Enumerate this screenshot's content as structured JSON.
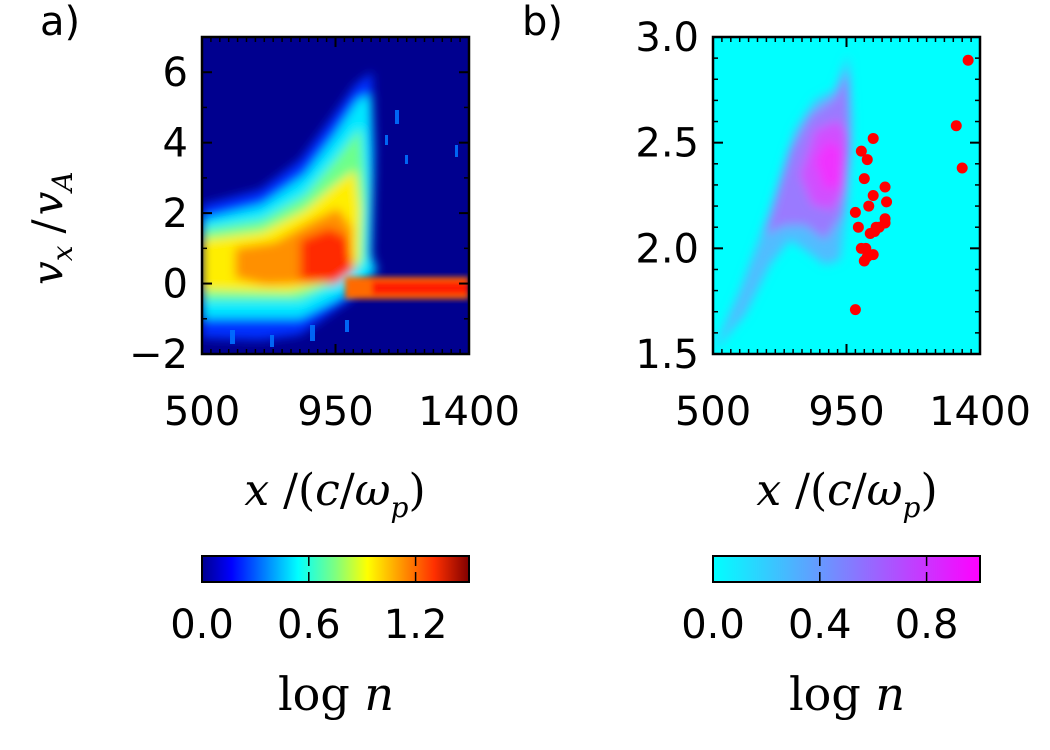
{
  "chart_data": [
    {
      "type": "heatmap",
      "panel_label": "a)",
      "xlabel": "x /(c/ω_p)",
      "ylabel": "v_x /v_A",
      "xlim": [
        500,
        1400
      ],
      "ylim": [
        -2,
        7
      ],
      "xticks": [
        500,
        950,
        1400
      ],
      "xtick_labels": [
        "500",
        "950",
        "1400"
      ],
      "yticks": [
        -2,
        0,
        2,
        4,
        6
      ],
      "ytick_labels": [
        "−2",
        "0",
        "2",
        "4",
        "6"
      ],
      "colormap": "jet",
      "background_color": "#00008f",
      "colorbar": {
        "label": "log n",
        "range": [
          0.0,
          1.5
        ],
        "ticks": [
          0.0,
          0.6,
          1.2
        ],
        "tick_labels": [
          "0.0",
          "0.6",
          "1.2"
        ]
      },
      "description_data": {
        "upstream_beam": {
          "x_range": [
            1040,
            1400
          ],
          "v_center": 0.0,
          "log_n": 1.35
        },
        "shock_front_x": 1030,
        "max_velocity_at_front": 5.8
      }
    },
    {
      "type": "heatmap",
      "panel_label": "b)",
      "xlabel": "x /(c/ω_p)",
      "xlim": [
        500,
        1400
      ],
      "ylim": [
        1.5,
        3.0
      ],
      "xticks": [
        500,
        950,
        1400
      ],
      "xtick_labels": [
        "500",
        "950",
        "1400"
      ],
      "yticks": [
        1.5,
        2.0,
        2.5,
        3.0
      ],
      "ytick_labels": [
        "1.5",
        "2.0",
        "2.5",
        "3.0"
      ],
      "colormap": "cool",
      "background_color": "#00ffff",
      "colorbar": {
        "label": "log n",
        "range": [
          0.0,
          1.0
        ],
        "ticks": [
          0.0,
          0.4,
          0.8
        ],
        "tick_labels": [
          "0.0",
          "0.4",
          "0.8"
        ]
      },
      "scatter": {
        "color": "#ff0000",
        "x": [
          1000,
          1020,
          1040,
          1010,
          980,
          1025,
          1040,
          990,
          1030,
          1015,
          1045,
          1050,
          1060,
          1080,
          1085,
          1080,
          1010,
          1020,
          1000,
          1040,
          1080,
          980,
          1340,
          1320,
          1360
        ],
        "y": [
          2.46,
          2.42,
          2.52,
          2.33,
          2.17,
          2.2,
          2.25,
          2.1,
          2.07,
          2.0,
          2.08,
          2.1,
          2.1,
          2.12,
          2.22,
          2.29,
          1.94,
          1.96,
          2.0,
          1.97,
          2.14,
          1.71,
          2.38,
          2.58,
          2.89
        ]
      }
    }
  ]
}
